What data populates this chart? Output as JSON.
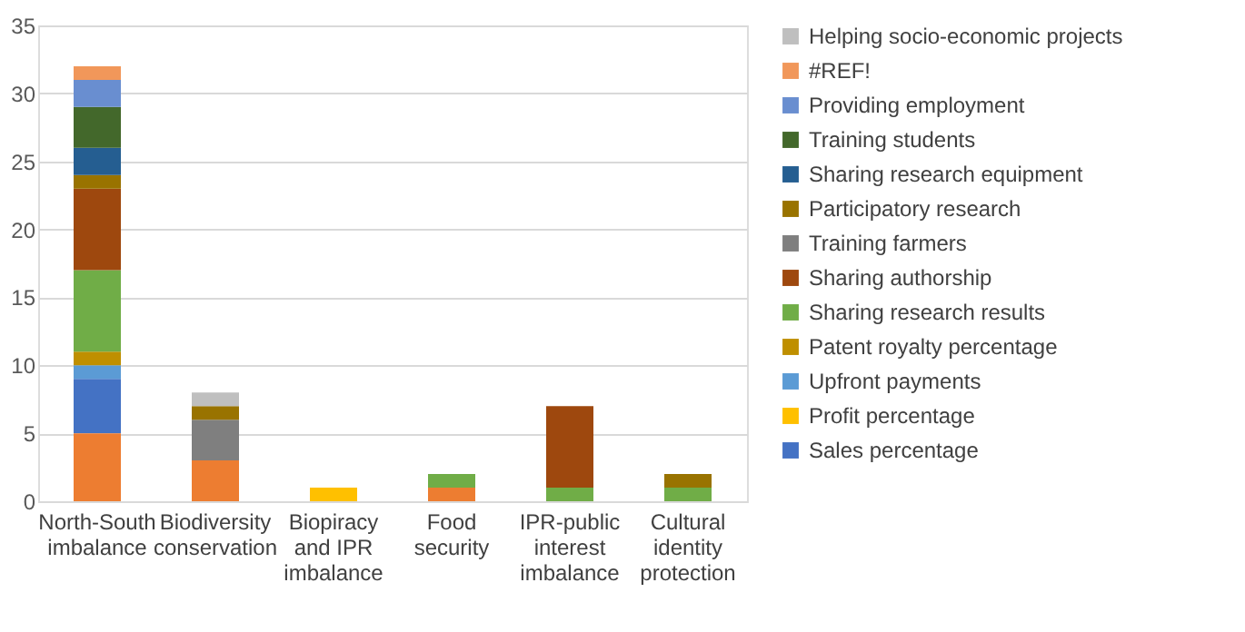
{
  "chart_data": {
    "type": "bar",
    "stacked": true,
    "categories": [
      "North-South imbalance",
      "Biodiversity conservation",
      "Biopiracy and IPR imbalance",
      "Food security",
      "IPR-public interest imbalance",
      "Cultural identity protection"
    ],
    "ylim": [
      0,
      35
    ],
    "yticks": [
      0,
      5,
      10,
      15,
      20,
      25,
      30,
      35
    ],
    "grid": "y",
    "legend": "right",
    "series": [
      {
        "color": "#ed7d31",
        "values": [
          5,
          3,
          0,
          1,
          0,
          0
        ]
      },
      {
        "name": "Sales percentage",
        "color": "#4472c4",
        "values": [
          4,
          0,
          0,
          0,
          0,
          0
        ]
      },
      {
        "name": "Profit percentage",
        "color": "#ffc000",
        "values": [
          0,
          0,
          1,
          0,
          0,
          0
        ]
      },
      {
        "name": "Upfront payments",
        "color": "#5b9bd5",
        "values": [
          1,
          0,
          0,
          0,
          0,
          0
        ]
      },
      {
        "name": "Patent royalty percentage",
        "color": "#bf8f00",
        "values": [
          1,
          0,
          0,
          0,
          0,
          0
        ]
      },
      {
        "name": "Sharing research results",
        "color": "#70ad47",
        "values": [
          6,
          0,
          0,
          1,
          1,
          1
        ]
      },
      {
        "name": "Sharing authorship",
        "color": "#9e480e",
        "values": [
          6,
          0,
          0,
          0,
          6,
          0
        ]
      },
      {
        "name": "Training farmers",
        "color": "#7f7f7f",
        "values": [
          0,
          3,
          0,
          0,
          0,
          0
        ]
      },
      {
        "name": "Participatory research",
        "color": "#997300",
        "values": [
          1,
          1,
          0,
          0,
          0,
          1
        ]
      },
      {
        "name": "Sharing research equipment",
        "color": "#255e91",
        "values": [
          2,
          0,
          0,
          0,
          0,
          0
        ]
      },
      {
        "name": "Training students",
        "color": "#43682b",
        "values": [
          3,
          0,
          0,
          0,
          0,
          0
        ]
      },
      {
        "name": "Providing employment",
        "color": "#698ed0",
        "values": [
          2,
          0,
          0,
          0,
          0,
          0
        ]
      },
      {
        "name": "#REF!",
        "color": "#f1975a",
        "values": [
          1,
          0,
          0,
          0,
          0,
          0
        ]
      },
      {
        "name": "Helping socio-economic projects",
        "color": "#bfbfbf",
        "values": [
          0,
          1,
          0,
          0,
          0,
          0
        ]
      }
    ]
  }
}
